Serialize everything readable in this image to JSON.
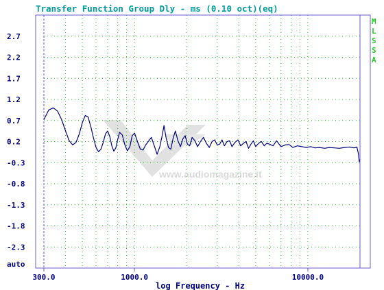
{
  "colors": {
    "frame": "#6a5acd",
    "grid": "#22bb22",
    "trace": "#000080",
    "title": "#009a9a",
    "labels": "#000080",
    "side_label": "#22cc22",
    "watermark": "#d6d6d6"
  },
  "watermark": {
    "text": "www.audiomagazine.it"
  },
  "side_label": {
    "letters": [
      "M",
      "L",
      "S",
      "S",
      "A"
    ]
  },
  "chart_data": {
    "type": "line",
    "title": "Transfer Function Group Dly - ms (0.10 oct)(eq)",
    "xlabel": "log Frequency - Hz",
    "ylabel": "",
    "x_scale": "log",
    "xlim": [
      300,
      20000
    ],
    "ylim": [
      -2.8,
      3.2
    ],
    "y_bottom_label": "auto",
    "y_ticks": [
      "2.7",
      "2.2",
      "1.7",
      "1.2",
      "0.7",
      "0.2",
      "-0.3",
      "-0.8",
      "-1.3",
      "-1.8",
      "-2.3"
    ],
    "y_tick_values": [
      2.7,
      2.2,
      1.7,
      1.2,
      0.7,
      0.2,
      -0.3,
      -0.8,
      -1.3,
      -1.8,
      -2.3
    ],
    "x_tick_labels": [
      "300.0",
      "1000.0",
      "10000.0"
    ],
    "x_tick_values": [
      300,
      1000,
      10000
    ],
    "grid": true,
    "series": [
      {
        "x": [
          300,
          320,
          340,
          360,
          380,
          400,
          420,
          440,
          460,
          480,
          500,
          520,
          540,
          560,
          580,
          600,
          620,
          640,
          660,
          680,
          700,
          720,
          740,
          760,
          780,
          800,
          820,
          850,
          880,
          910,
          940,
          970,
          1000,
          1040,
          1080,
          1120,
          1160,
          1200,
          1250,
          1300,
          1350,
          1400,
          1440,
          1480,
          1520,
          1570,
          1620,
          1670,
          1720,
          1780,
          1840,
          1900,
          1960,
          2020,
          2080,
          2150,
          2230,
          2310,
          2400,
          2500,
          2600,
          2700,
          2800,
          2900,
          3000,
          3100,
          3200,
          3300,
          3420,
          3540,
          3650,
          3800,
          3950,
          4100,
          4250,
          4400,
          4550,
          4700,
          4850,
          5000,
          5200,
          5400,
          5600,
          5800,
          6000,
          6300,
          6600,
          7000,
          7400,
          7800,
          8200,
          8700,
          9200,
          9800,
          10400,
          11000,
          11700,
          12500,
          13300,
          14200,
          15200,
          16300,
          17400,
          18500,
          19200,
          19600,
          19800,
          20000
        ],
        "y": [
          0.72,
          0.95,
          1.0,
          0.92,
          0.72,
          0.45,
          0.22,
          0.12,
          0.18,
          0.38,
          0.65,
          0.82,
          0.78,
          0.55,
          0.28,
          0.06,
          -0.04,
          0.02,
          0.18,
          0.38,
          0.45,
          0.32,
          0.1,
          -0.03,
          0.05,
          0.25,
          0.42,
          0.36,
          0.12,
          -0.02,
          0.08,
          0.34,
          0.4,
          0.2,
          0.02,
          0.0,
          0.12,
          0.2,
          0.3,
          0.1,
          -0.1,
          0.08,
          0.32,
          0.58,
          0.3,
          0.06,
          0.02,
          0.28,
          0.45,
          0.22,
          0.08,
          0.26,
          0.34,
          0.14,
          0.1,
          0.3,
          0.22,
          0.08,
          0.2,
          0.3,
          0.16,
          0.06,
          0.2,
          0.24,
          0.12,
          0.14,
          0.24,
          0.1,
          0.2,
          0.22,
          0.08,
          0.18,
          0.24,
          0.1,
          0.16,
          0.2,
          0.04,
          0.14,
          0.22,
          0.08,
          0.16,
          0.2,
          0.1,
          0.16,
          0.14,
          0.1,
          0.22,
          0.08,
          0.12,
          0.13,
          0.06,
          0.1,
          0.08,
          0.06,
          0.08,
          0.05,
          0.06,
          0.04,
          0.06,
          0.05,
          0.04,
          0.06,
          0.07,
          0.05,
          0.07,
          -0.1,
          -0.28,
          -0.22
        ]
      }
    ]
  }
}
